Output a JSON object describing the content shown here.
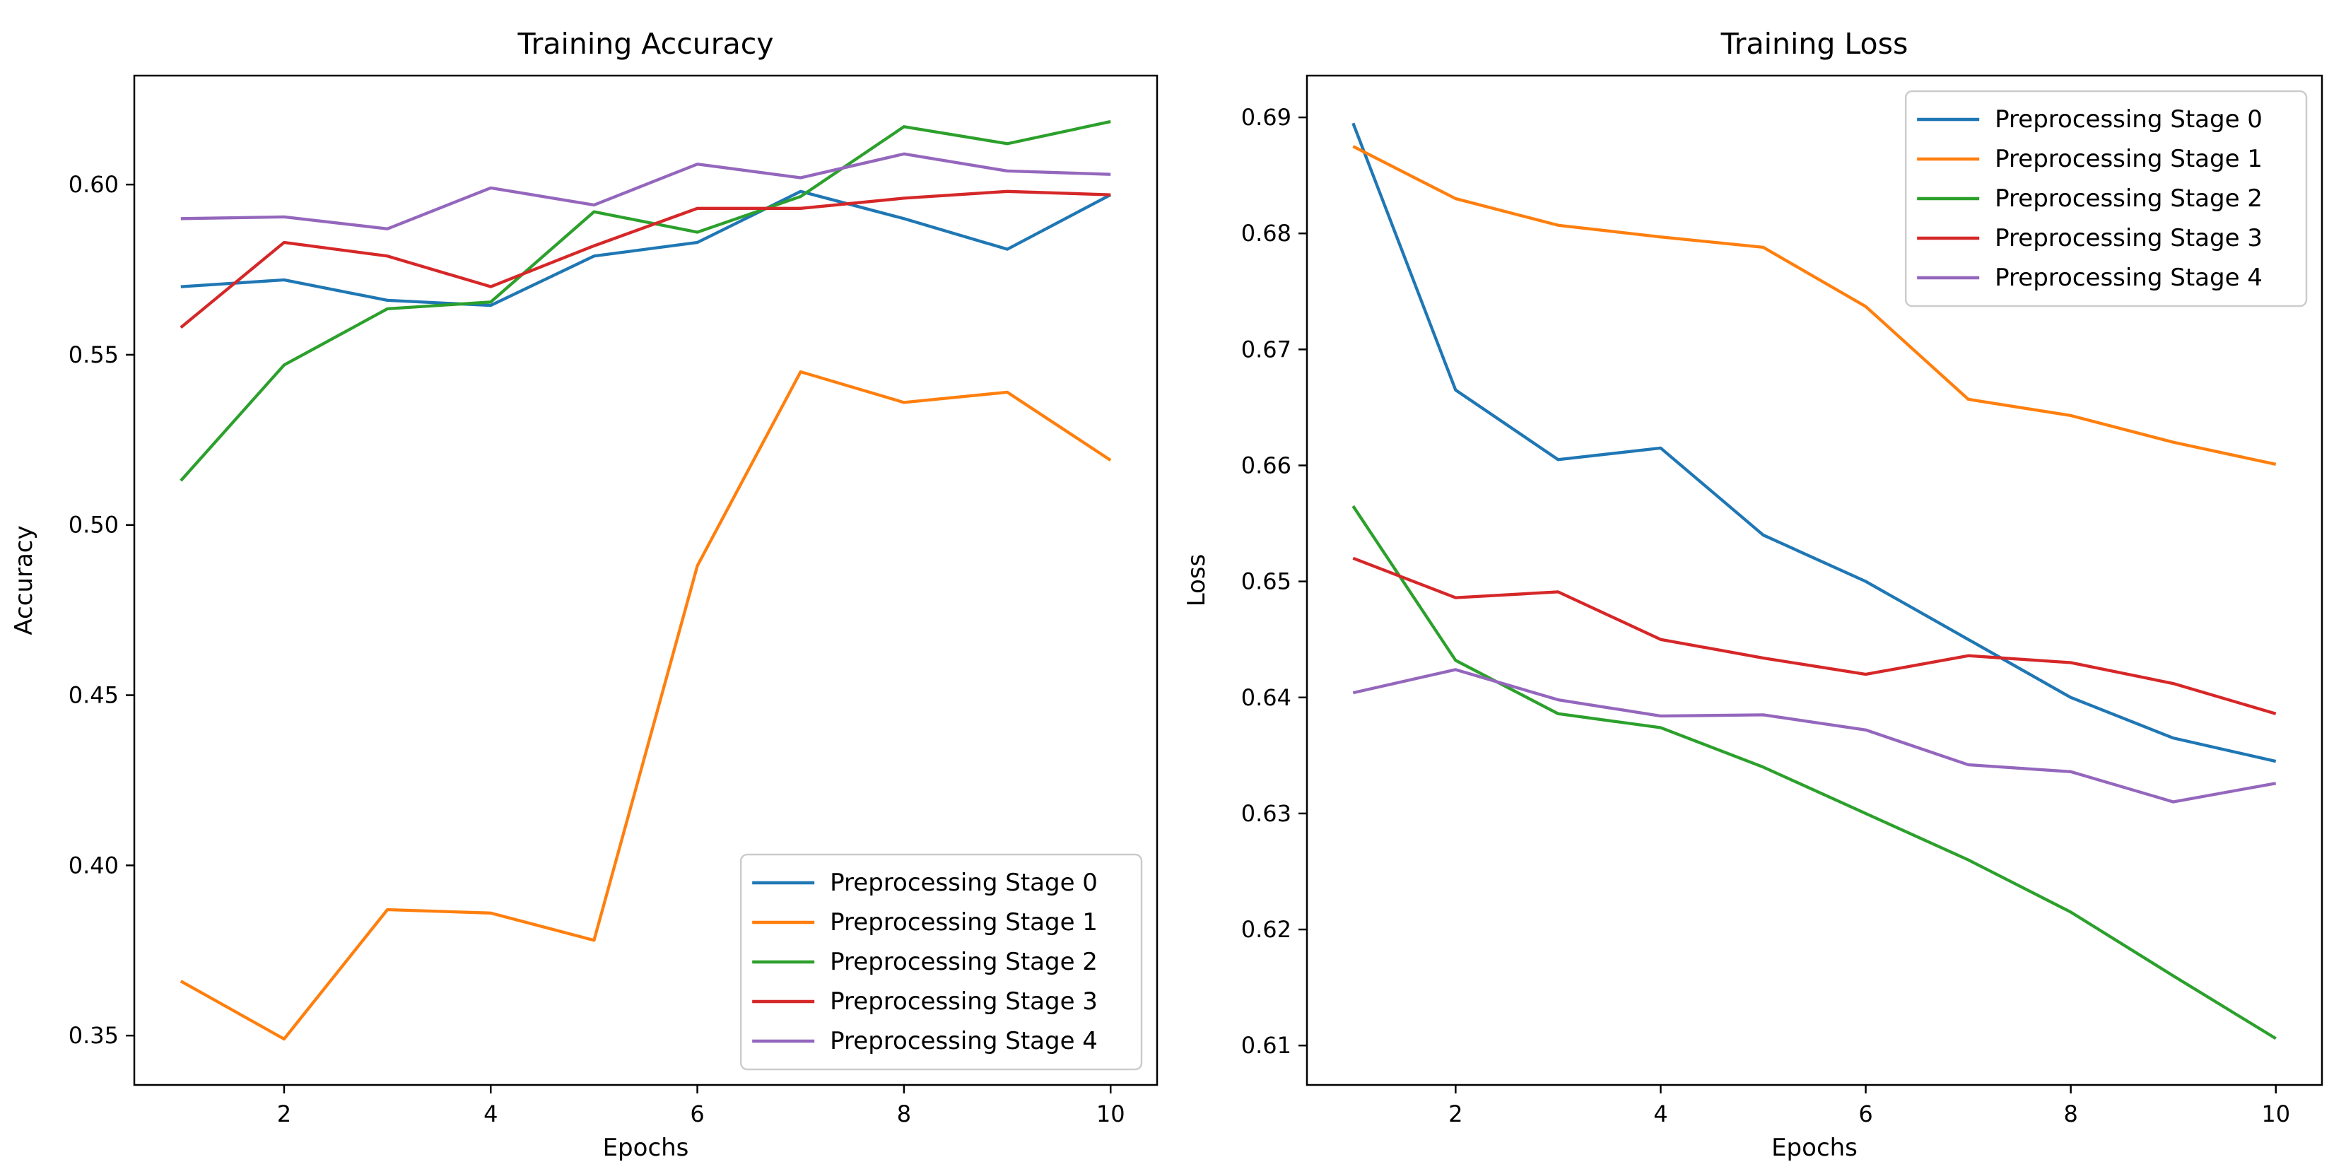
{
  "figure": {
    "background": "#ffffff",
    "text_color": "#000000",
    "axis_color": "#000000",
    "legend_border_color": "#cccccc",
    "legend_background": "#ffffff"
  },
  "chart_data": [
    {
      "type": "line",
      "title": "Training Accuracy",
      "xlabel": "Epochs",
      "ylabel": "Accuracy",
      "x": [
        1,
        2,
        3,
        4,
        5,
        6,
        7,
        8,
        9,
        10
      ],
      "xlim": [
        0.55,
        10.45
      ],
      "ylim": [
        0.3355,
        0.632
      ],
      "xticks": [
        2,
        4,
        6,
        8,
        10
      ],
      "yticks": [
        0.35,
        0.4,
        0.45,
        0.5,
        0.55,
        0.6
      ],
      "ytick_labels": [
        "0.35",
        "0.40",
        "0.45",
        "0.50",
        "0.55",
        "0.60"
      ],
      "grid": false,
      "legend_position": "lower-right",
      "series": [
        {
          "name": "Preprocessing Stage 0",
          "color": "#1f77b4",
          "values": [
            0.57,
            0.572,
            0.566,
            0.5645,
            0.579,
            0.583,
            0.598,
            0.59,
            0.581,
            0.597
          ]
        },
        {
          "name": "Preprocessing Stage 1",
          "color": "#ff7f0e",
          "values": [
            0.366,
            0.349,
            0.387,
            0.386,
            0.378,
            0.488,
            0.545,
            0.536,
            0.539,
            0.519
          ]
        },
        {
          "name": "Preprocessing Stage 2",
          "color": "#2ca02c",
          "values": [
            0.513,
            0.547,
            0.5635,
            0.5655,
            0.592,
            0.586,
            0.5965,
            0.617,
            0.612,
            0.6185
          ]
        },
        {
          "name": "Preprocessing Stage 3",
          "color": "#d62728",
          "values": [
            0.558,
            0.583,
            0.579,
            0.57,
            0.582,
            0.593,
            0.593,
            0.596,
            0.598,
            0.597
          ]
        },
        {
          "name": "Preprocessing Stage 4",
          "color": "#9467bd",
          "values": [
            0.59,
            0.5905,
            0.587,
            0.599,
            0.594,
            0.606,
            0.602,
            0.609,
            0.604,
            0.603
          ]
        }
      ]
    },
    {
      "type": "line",
      "title": "Training Loss",
      "xlabel": "Epochs",
      "ylabel": "Loss",
      "x": [
        1,
        2,
        3,
        4,
        5,
        6,
        7,
        8,
        9,
        10
      ],
      "xlim": [
        0.55,
        10.45
      ],
      "ylim": [
        0.6066,
        0.6936
      ],
      "xticks": [
        2,
        4,
        6,
        8,
        10
      ],
      "yticks": [
        0.61,
        0.62,
        0.63,
        0.64,
        0.65,
        0.66,
        0.67,
        0.68,
        0.69
      ],
      "ytick_labels": [
        "0.61",
        "0.62",
        "0.63",
        "0.64",
        "0.65",
        "0.66",
        "0.67",
        "0.68",
        "0.69"
      ],
      "grid": false,
      "legend_position": "upper-right",
      "series": [
        {
          "name": "Preprocessing Stage 0",
          "color": "#1f77b4",
          "values": [
            0.6895,
            0.6665,
            0.6605,
            0.6615,
            0.654,
            0.65,
            0.645,
            0.64,
            0.6365,
            0.6345
          ]
        },
        {
          "name": "Preprocessing Stage 1",
          "color": "#ff7f0e",
          "values": [
            0.6875,
            0.683,
            0.6807,
            0.6797,
            0.6788,
            0.6737,
            0.6657,
            0.6643,
            0.662,
            0.6601
          ]
        },
        {
          "name": "Preprocessing Stage 2",
          "color": "#2ca02c",
          "values": [
            0.6565,
            0.6432,
            0.6386,
            0.6374,
            0.634,
            0.63,
            0.626,
            0.6215,
            0.616,
            0.6106
          ]
        },
        {
          "name": "Preprocessing Stage 3",
          "color": "#d62728",
          "values": [
            0.652,
            0.6486,
            0.6491,
            0.645,
            0.6434,
            0.642,
            0.6436,
            0.643,
            0.6412,
            0.6386
          ]
        },
        {
          "name": "Preprocessing Stage 4",
          "color": "#9467bd",
          "values": [
            0.6404,
            0.6424,
            0.6398,
            0.6384,
            0.6385,
            0.6372,
            0.6342,
            0.6336,
            0.631,
            0.6326
          ]
        }
      ]
    }
  ]
}
